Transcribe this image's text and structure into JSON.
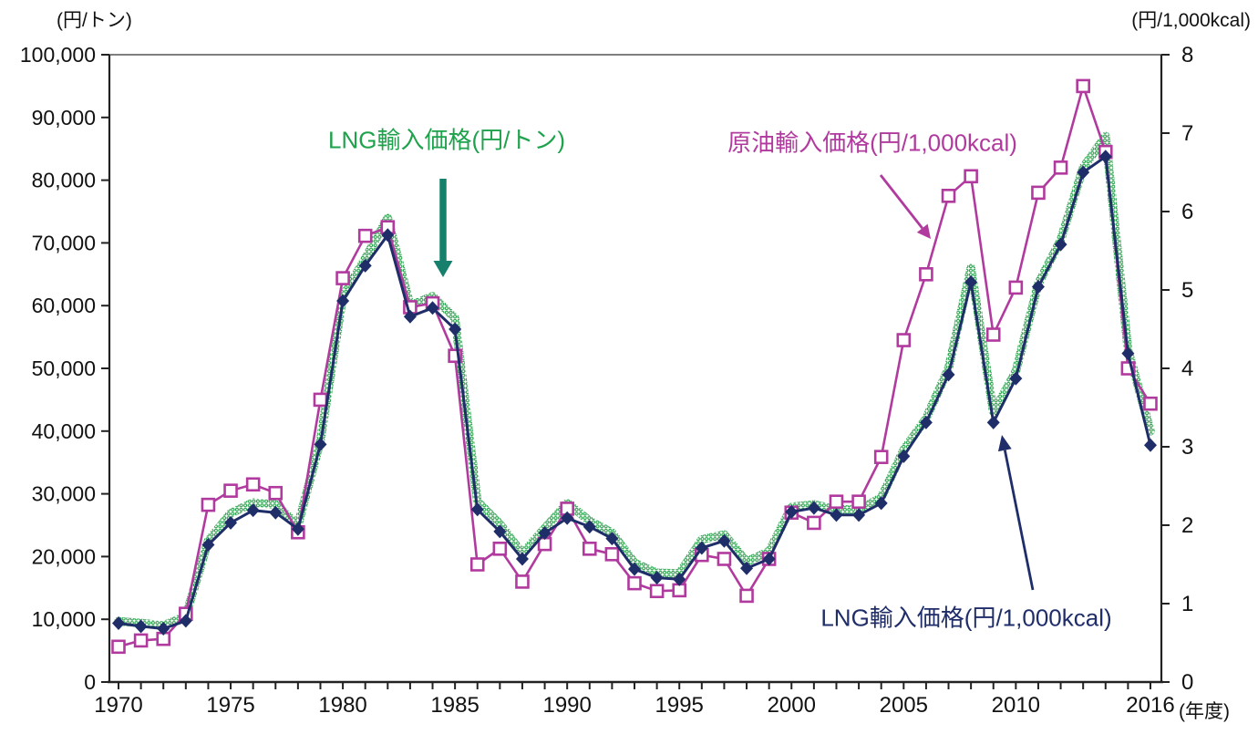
{
  "chart_data": {
    "type": "line",
    "title": "",
    "x_label_unit": "(年度)",
    "x": [
      1970,
      1971,
      1972,
      1973,
      1974,
      1975,
      1976,
      1977,
      1978,
      1979,
      1980,
      1981,
      1982,
      1983,
      1984,
      1985,
      1986,
      1987,
      1988,
      1989,
      1990,
      1991,
      1992,
      1993,
      1994,
      1995,
      1996,
      1997,
      1998,
      1999,
      2000,
      2001,
      2002,
      2003,
      2004,
      2005,
      2006,
      2007,
      2008,
      2009,
      2010,
      2011,
      2012,
      2013,
      2014,
      2015,
      2016
    ],
    "x_tick_years": [
      1970,
      1975,
      1980,
      1985,
      1990,
      1995,
      2000,
      2005,
      2010,
      2016
    ],
    "left_axis": {
      "unit": "(円/トン)",
      "min": 0,
      "max": 100000,
      "tick_step": 10000,
      "tick_labels": [
        "0",
        "10,000",
        "20,000",
        "30,000",
        "40,000",
        "50,000",
        "60,000",
        "70,000",
        "80,000",
        "90,000",
        "100,000"
      ]
    },
    "right_axis": {
      "unit": "(円/1,000kcal)",
      "min": 0,
      "max": 8,
      "tick_step": 1,
      "tick_labels": [
        "0",
        "1",
        "2",
        "3",
        "4",
        "5",
        "6",
        "7",
        "8"
      ]
    },
    "grid": false,
    "legend_position": "inline-annotations",
    "series": [
      {
        "name": "LNG輸入価格(円/トン)",
        "axis": "left",
        "color": "#2ba14d",
        "line_style": "thick-dotted-band",
        "marker": "none",
        "values": [
          9700,
          9400,
          9000,
          10500,
          22500,
          26900,
          28600,
          28300,
          25000,
          38500,
          61500,
          67500,
          74000,
          60000,
          61500,
          58000,
          28800,
          25200,
          20500,
          24500,
          28500,
          25700,
          23800,
          19000,
          17400,
          17300,
          22700,
          23500,
          19200,
          20800,
          27900,
          28300,
          27500,
          27500,
          29400,
          37000,
          42000,
          50000,
          66000,
          43000,
          49500,
          63500,
          70500,
          82000,
          87000,
          53000,
          40000
        ]
      },
      {
        "name": "原油輸入価格(円/1,000kcal)",
        "axis": "right",
        "color": "#b13a9e",
        "line_style": "solid",
        "marker": "open-square",
        "values": [
          0.45,
          0.53,
          0.55,
          0.87,
          2.26,
          2.44,
          2.52,
          2.41,
          1.91,
          3.6,
          5.15,
          5.69,
          5.8,
          4.78,
          4.83,
          4.16,
          1.5,
          1.7,
          1.28,
          1.76,
          2.21,
          1.7,
          1.63,
          1.26,
          1.16,
          1.17,
          1.62,
          1.57,
          1.1,
          1.57,
          2.16,
          2.03,
          2.3,
          2.3,
          2.87,
          4.36,
          5.2,
          6.2,
          6.45,
          4.43,
          5.03,
          6.24,
          6.56,
          7.6,
          6.76,
          4.0,
          3.55
        ]
      },
      {
        "name": "LNG輸入価格(円/1,000kcal)",
        "axis": "right",
        "color": "#1f2d69",
        "line_style": "solid",
        "marker": "filled-diamond",
        "values": [
          0.75,
          0.71,
          0.68,
          0.78,
          1.75,
          2.03,
          2.19,
          2.16,
          1.95,
          3.03,
          4.86,
          5.31,
          5.7,
          4.66,
          4.77,
          4.5,
          2.2,
          1.92,
          1.57,
          1.9,
          2.09,
          1.98,
          1.83,
          1.44,
          1.33,
          1.31,
          1.71,
          1.8,
          1.45,
          1.57,
          2.17,
          2.22,
          2.13,
          2.13,
          2.28,
          2.88,
          3.31,
          3.92,
          5.1,
          3.31,
          3.87,
          5.04,
          5.58,
          6.5,
          6.7,
          4.19,
          3.02
        ]
      }
    ],
    "annotations": [
      {
        "text": "LNG輸入価格(円/トン)",
        "color": "#1ea24b",
        "arrow_color": "#17806d"
      },
      {
        "text": "原油輸入価格(円/1,000kcal)",
        "color": "#b13a9e",
        "arrow_color": "#b13a9e"
      },
      {
        "text": "LNG輸入価格(円/1,000kcal)",
        "color": "#1f2d69",
        "arrow_color": "#1f2d69"
      }
    ]
  }
}
